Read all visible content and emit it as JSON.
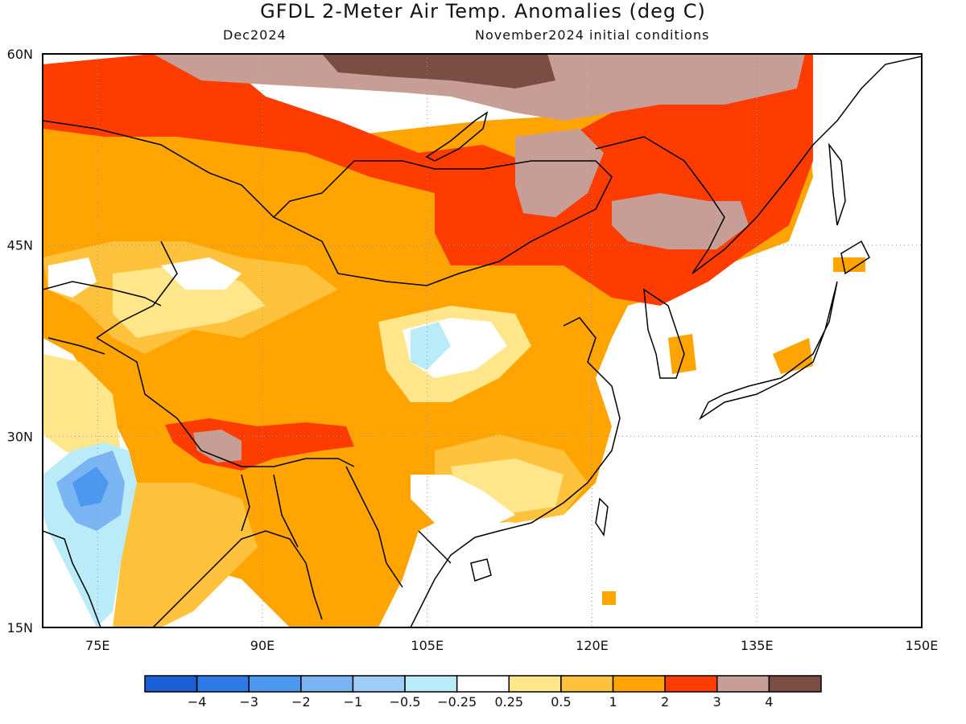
{
  "title": "GFDL 2-Meter Air Temp. Anomalies (deg C)",
  "valid_month": "Dec2024",
  "init": "November2024 initial conditions",
  "map": {
    "lon_ticks": [
      "75E",
      "90E",
      "105E",
      "120E",
      "135E",
      "150E"
    ],
    "lat_ticks": [
      "60N",
      "45N",
      "30N",
      "15N"
    ],
    "lon_range": [
      70,
      150
    ],
    "lat_range": [
      15,
      60
    ],
    "grid": "dotted"
  },
  "colorbar": {
    "colors": [
      "#1a5fd4",
      "#2e79e8",
      "#4c97f0",
      "#7bb4f2",
      "#9fcdf5",
      "#b9ecf8",
      "#ffffff",
      "#ffe68a",
      "#ffc23c",
      "#ffa400",
      "#ff3c00",
      "#c79e96",
      "#7a4e42"
    ],
    "labels": [
      "-4",
      "-3",
      "-2",
      "-1",
      "-0.5",
      "-0.25",
      "0.25",
      "0.5",
      "1",
      "2",
      "3",
      "4"
    ]
  }
}
